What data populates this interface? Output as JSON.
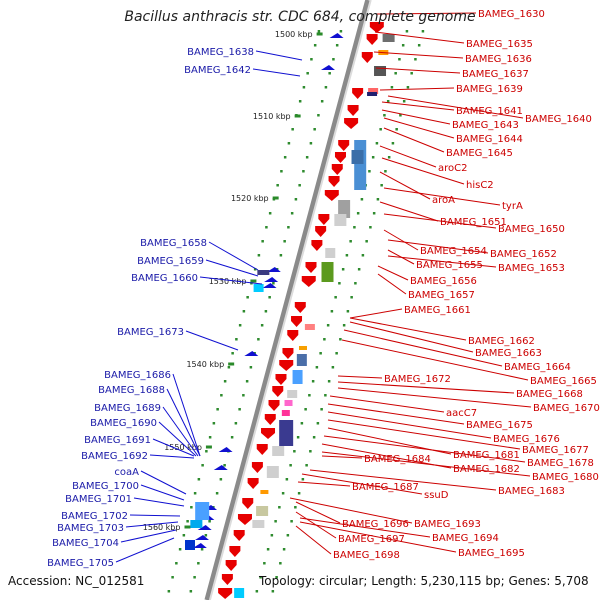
{
  "title": "Bacillus anthracis str. CDC 684, complete genome",
  "footer": {
    "accession": "Accession: NC_012581",
    "topology": "Topology: circular; Length: 5,230,115 bp; Genes: 5,708"
  },
  "kbp_ticks": [
    "1500 kbp",
    "1510 kbp",
    "1520 kbp",
    "1530 kbp",
    "1540 kbp",
    "1550 kbp",
    "1560 kbp"
  ],
  "colors": {
    "backbone": "#8a8a8a",
    "forward_gene": "#e60000",
    "reverse_gene": "#1010d0",
    "tick": "#2a8a2a",
    "right_label": "#cc0000",
    "left_label": "#1a1aa8"
  },
  "left_labels": [
    "BAMEG_1638",
    "BAMEG_1642",
    "BAMEG_1658",
    "BAMEG_1659",
    "BAMEG_1660",
    "BAMEG_1673",
    "BAMEG_1686",
    "BAMEG_1688",
    "BAMEG_1689",
    "BAMEG_1690",
    "BAMEG_1691",
    "BAMEG_1692",
    "coaA",
    "BAMEG_1700",
    "BAMEG_1701",
    "BAMEG_1702",
    "BAMEG_1703",
    "BAMEG_1704",
    "BAMEG_1705"
  ],
  "right_labels": [
    "BAMEG_1630",
    "BAMEG_1635",
    "BAMEG_1636",
    "BAMEG_1637",
    "BAMEG_1639",
    "BAMEG_1641",
    "BAMEG_1643",
    "BAMEG_1640",
    "BAMEG_1644",
    "BAMEG_1645",
    "aroC2",
    "hisC2",
    "aroA",
    "tyrA",
    "BAMEG_1651",
    "BAMEG_1650",
    "BAMEG_1654",
    "BAMEG_1652",
    "BAMEG_1655",
    "BAMEG_1653",
    "BAMEG_1656",
    "BAMEG_1657",
    "BAMEG_1661",
    "BAMEG_1662",
    "BAMEG_1663",
    "BAMEG_1664",
    "BAMEG_1665",
    "BAMEG_1672",
    "BAMEG_1668",
    "BAMEG_1670",
    "aacC7",
    "BAMEG_1675",
    "BAMEG_1676",
    "BAMEG_1677",
    "BAMEG_1681",
    "BAMEG_1678",
    "BAMEG_1684",
    "BAMEG_1682",
    "BAMEG_1680",
    "BAMEG_1687",
    "BAMEG_1683",
    "ssuD",
    "BAMEG_1693",
    "BAMEG_1696",
    "BAMEG_1697",
    "BAMEG_1694",
    "BAMEG_1698",
    "BAMEG_1695"
  ]
}
